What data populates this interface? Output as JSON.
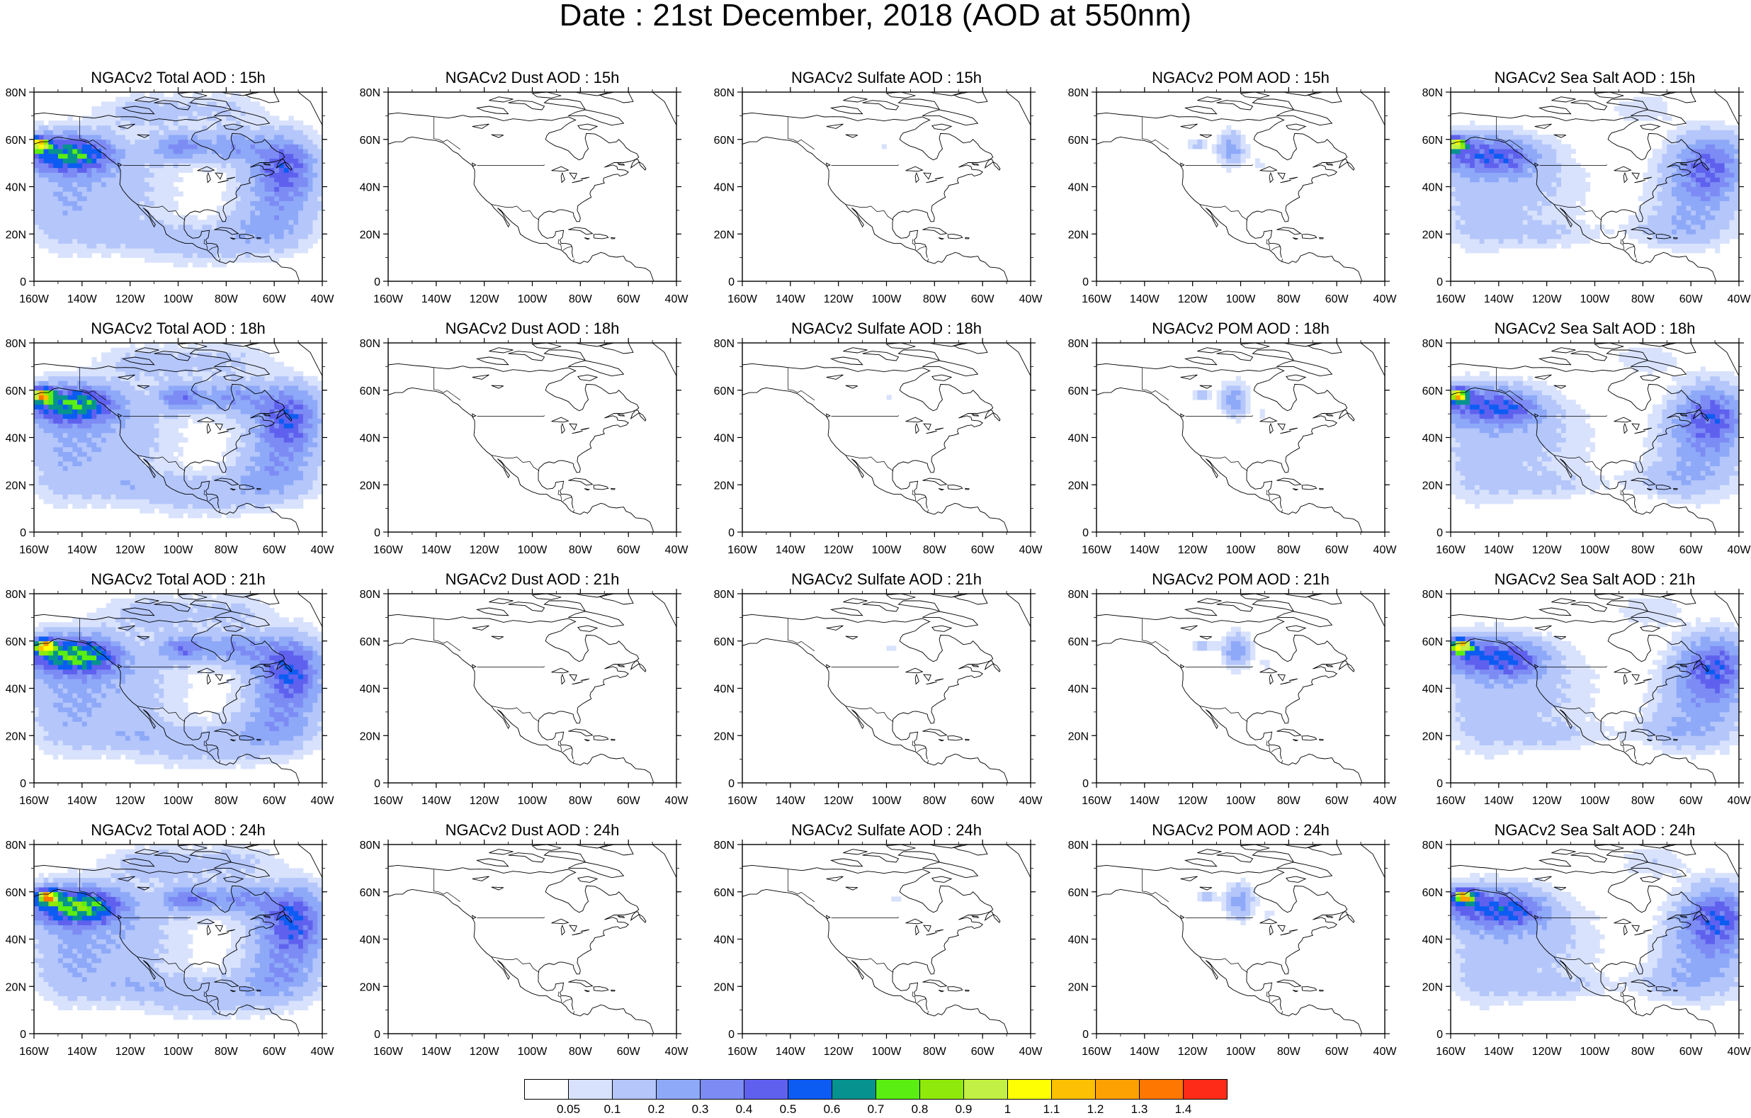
{
  "title": "Date : 21st December, 2018 (AOD at 550nm)",
  "columns": [
    {
      "key": "total",
      "titles": [
        "NGACv2 Total AOD : 15h",
        "NGACv2 Total AOD : 18h",
        "NGACv2 Total AOD : 21h",
        "NGACv2 Total AOD : 24h"
      ]
    },
    {
      "key": "dust",
      "titles": [
        "NGACv2 Dust AOD : 15h",
        "NGACv2 Dust AOD : 18h",
        "NGACv2 Dust AOD : 21h",
        "NGACv2 Dust AOD : 24h"
      ]
    },
    {
      "key": "sulfate",
      "titles": [
        "NGACv2 Sulfate AOD : 15h",
        "NGACv2 Sulfate AOD : 18h",
        "NGACv2 Sulfate AOD : 21h",
        "NGACv2 Sulfate AOD : 24h"
      ]
    },
    {
      "key": "pom",
      "titles": [
        "NGACv2 POM AOD : 15h",
        "NGACv2 POM AOD : 18h",
        "NGACv2 POM AOD : 21h",
        "NGACv2 POM AOD : 24h"
      ]
    },
    {
      "key": "seasalt",
      "titles": [
        "NGACv2 Sea Salt AOD : 15h",
        "NGACv2 Sea Salt AOD : 18h",
        "NGACv2 Sea Salt AOD : 21h",
        "NGACv2 Sea Salt  AOD : 24h"
      ]
    }
  ],
  "axes": {
    "lat_ticks": [
      "80N",
      "60N",
      "40N",
      "20N",
      "0"
    ],
    "lon_ticks": [
      "160W",
      "140W",
      "120W",
      "100W",
      "80W",
      "60W",
      "40W"
    ],
    "lon_range": [
      -160,
      -40
    ],
    "lat_range": [
      0,
      80
    ]
  },
  "colorbar": {
    "colors": [
      "#ffffff",
      "#d8e2fc",
      "#b4c6fa",
      "#8ea9f8",
      "#7d8cf4",
      "#5f61ee",
      "#0c5cf3",
      "#06938f",
      "#5aee13",
      "#8fea0b",
      "#c3f044",
      "#ffff04",
      "#fdc002",
      "#fda002",
      "#fd7701",
      "#fd2b17"
    ],
    "labels": [
      "0.05",
      "0.1",
      "0.2",
      "0.3",
      "0.4",
      "0.5",
      "0.6",
      "0.7",
      "0.8",
      "0.9",
      "1",
      "1.1",
      "1.2",
      "1.3",
      "1.4"
    ]
  }
}
